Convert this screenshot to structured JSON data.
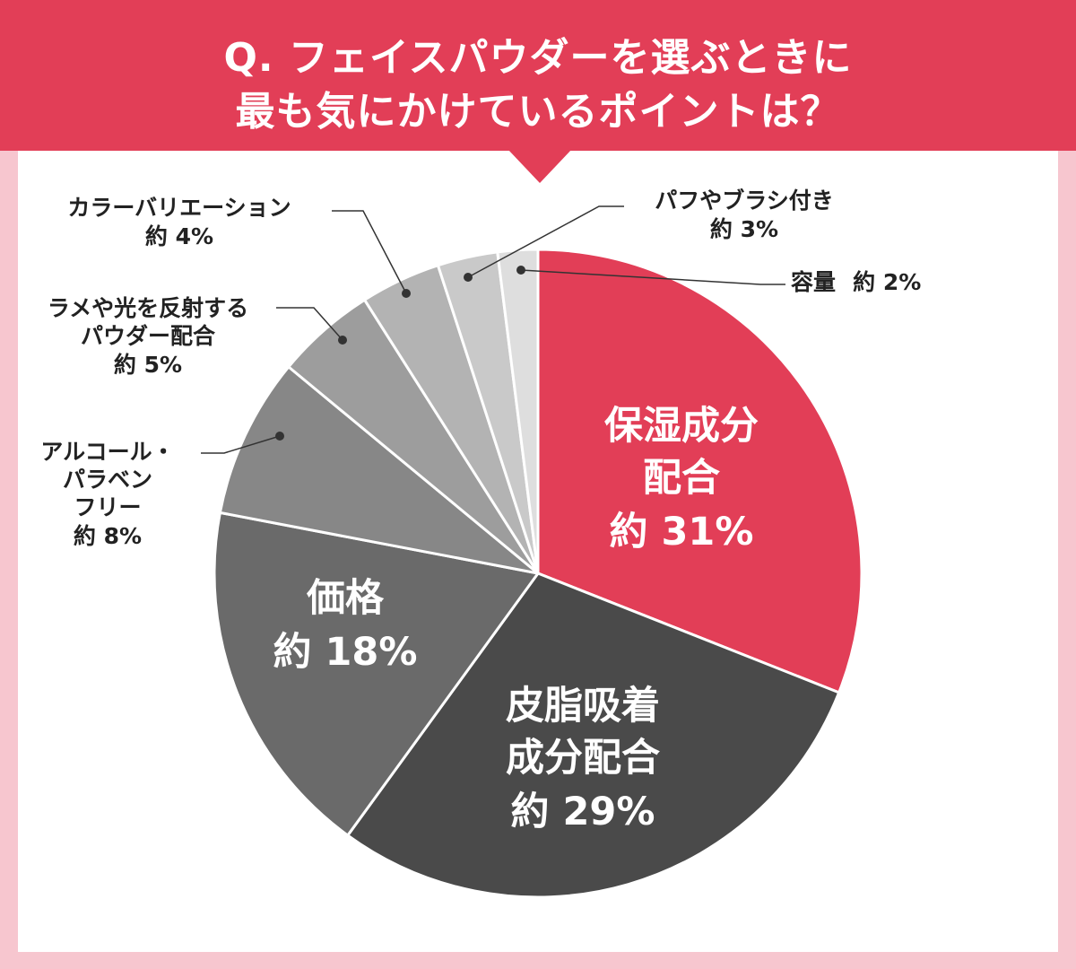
{
  "header": {
    "title_line_1": "Q. フェイスパウダーを選ぶときに",
    "title_line_2": "最も気にかけているポイントは？",
    "background_color": "#e23e57",
    "page_background_color": "#f7c6cf"
  },
  "chart_data": {
    "type": "pie",
    "title": "Q. フェイスパウダーを選ぶときに最も気にかけているポイントは？",
    "slices": [
      {
        "label_lines": [
          "保湿成分",
          "配合"
        ],
        "value_text": "約 31%",
        "value": 31,
        "color": "#e23e57"
      },
      {
        "label_lines": [
          "皮脂吸着",
          "成分配合"
        ],
        "value_text": "約 29%",
        "value": 29,
        "color": "#4a4a4a"
      },
      {
        "label_lines": [
          "価格"
        ],
        "value_text": "約 18%",
        "value": 18,
        "color": "#6a6a6a"
      },
      {
        "label_lines": [
          "アルコール・",
          "パラベン",
          "フリー"
        ],
        "value_text": "約 8%",
        "value": 8,
        "color": "#878787"
      },
      {
        "label_lines": [
          "ラメや光を反射する",
          "パウダー配合"
        ],
        "value_text": "約 5%",
        "value": 5,
        "color": "#9d9d9d"
      },
      {
        "label_lines": [
          "カラーバリエーション"
        ],
        "value_text": "約 4%",
        "value": 4,
        "color": "#b3b3b3"
      },
      {
        "label_lines": [
          "パフやブラシ付き"
        ],
        "value_text": "約 3%",
        "value": 3,
        "color": "#c9c9c9"
      },
      {
        "label_lines": [
          "容量"
        ],
        "value_text": "約 2%",
        "value": 2,
        "color": "#dedede"
      }
    ]
  }
}
